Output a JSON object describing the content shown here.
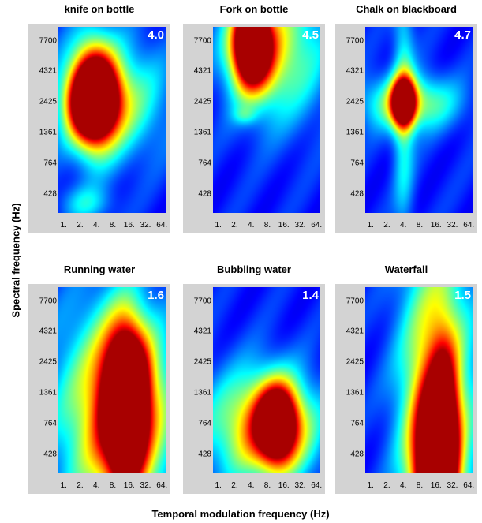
{
  "axes": {
    "ylabel": "Spectral frequency (Hz)",
    "xlabel": "Temporal modulation frequency (Hz)"
  },
  "chart_data": [
    {
      "type": "heatmap",
      "title": "knife on bottle",
      "score": "4.0",
      "x_ticks": [
        "1.",
        "2.",
        "4.",
        "8.",
        "16.",
        "32.",
        "64."
      ],
      "y_ticks": [
        "7700",
        "4321",
        "2425",
        "1361",
        "764",
        "428"
      ],
      "blobs": [
        {
          "x": 3.5,
          "y": 2800,
          "sx": 0.9,
          "sy": 0.22,
          "v": 1.0
        },
        {
          "x": 3.5,
          "y": 2425,
          "sx": 1.1,
          "sy": 0.15,
          "v": 0.8
        },
        {
          "x": 8,
          "y": 2600,
          "sx": 2.2,
          "sy": 0.25,
          "v": 0.4
        },
        {
          "x": 2.5,
          "y": 360,
          "sx": 1.1,
          "sy": 0.08,
          "v": 0.22
        }
      ]
    },
    {
      "type": "heatmap",
      "title": "Fork on bottle",
      "score": "4.5",
      "x_ticks": [
        "1.",
        "2.",
        "4.",
        "8.",
        "16.",
        "32.",
        "64."
      ],
      "y_ticks": [
        "7700",
        "4321",
        "2425",
        "1361",
        "764",
        "428"
      ],
      "blobs": [
        {
          "x": 4,
          "y": 6500,
          "sx": 0.9,
          "sy": 0.18,
          "v": 1.0
        },
        {
          "x": 4,
          "y": 9000,
          "sx": 0.6,
          "sy": 0.15,
          "v": 0.7
        },
        {
          "x": 12,
          "y": 6500,
          "sx": 2.0,
          "sy": 0.3,
          "v": 0.45
        },
        {
          "x": 3,
          "y": 1900,
          "sx": 0.5,
          "sy": 0.04,
          "v": 0.15
        }
      ]
    },
    {
      "type": "heatmap",
      "title": "Chalk on blackboard",
      "score": "4.7",
      "x_ticks": [
        "1.",
        "2.",
        "4.",
        "8.",
        "16.",
        "32.",
        "64."
      ],
      "y_ticks": [
        "7700",
        "4321",
        "2425",
        "1361",
        "764",
        "428"
      ],
      "blobs": [
        {
          "x": 4,
          "y": 2425,
          "sx": 0.5,
          "sy": 0.1,
          "v": 1.0
        },
        {
          "x": 5,
          "y": 2425,
          "sx": 2.0,
          "sy": 0.12,
          "v": 0.45
        },
        {
          "x": 4,
          "y": 2425,
          "sx": 0.45,
          "sy": 0.55,
          "v": 0.3
        }
      ]
    },
    {
      "type": "heatmap",
      "title": "Running water",
      "score": "1.6",
      "x_ticks": [
        "1.",
        "2.",
        "4.",
        "8.",
        "16.",
        "32.",
        "64."
      ],
      "y_ticks": [
        "7700",
        "4321",
        "2425",
        "1361",
        "764",
        "428"
      ],
      "blobs": [
        {
          "x": 14,
          "y": 1000,
          "sx": 0.75,
          "sy": 0.32,
          "v": 1.0
        },
        {
          "x": 14,
          "y": 1400,
          "sx": 1.2,
          "sy": 0.3,
          "v": 0.7
        },
        {
          "x": 8,
          "y": 1200,
          "sx": 2.6,
          "sy": 0.45,
          "v": 0.4
        },
        {
          "x": 10,
          "y": 500,
          "sx": 2.0,
          "sy": 0.4,
          "v": 0.3
        }
      ]
    },
    {
      "type": "heatmap",
      "title": "Bubbling water",
      "score": "1.4",
      "x_ticks": [
        "1.",
        "2.",
        "4.",
        "8.",
        "16.",
        "32.",
        "64."
      ],
      "y_ticks": [
        "7700",
        "4321",
        "2425",
        "1361",
        "764",
        "428"
      ],
      "blobs": [
        {
          "x": 12,
          "y": 760,
          "sx": 0.8,
          "sy": 0.16,
          "v": 1.0
        },
        {
          "x": 10,
          "y": 760,
          "sx": 1.8,
          "sy": 0.22,
          "v": 0.5
        },
        {
          "x": 4,
          "y": 700,
          "sx": 2.5,
          "sy": 0.25,
          "v": 0.3
        }
      ]
    },
    {
      "type": "heatmap",
      "title": "Waterfall",
      "score": "1.5",
      "x_ticks": [
        "1.",
        "2.",
        "4.",
        "8.",
        "16.",
        "32.",
        "64."
      ],
      "y_ticks": [
        "7700",
        "4321",
        "2425",
        "1361",
        "764",
        "428"
      ],
      "blobs": [
        {
          "x": 14,
          "y": 340,
          "sx": 0.8,
          "sy": 0.3,
          "v": 1.0
        },
        {
          "x": 22,
          "y": 650,
          "sx": 0.6,
          "sy": 0.35,
          "v": 0.7
        },
        {
          "x": 16,
          "y": 700,
          "sx": 1.4,
          "sy": 0.7,
          "v": 0.5
        },
        {
          "x": 16,
          "y": 1300,
          "sx": 1.6,
          "sy": 0.8,
          "v": 0.25
        }
      ]
    }
  ]
}
